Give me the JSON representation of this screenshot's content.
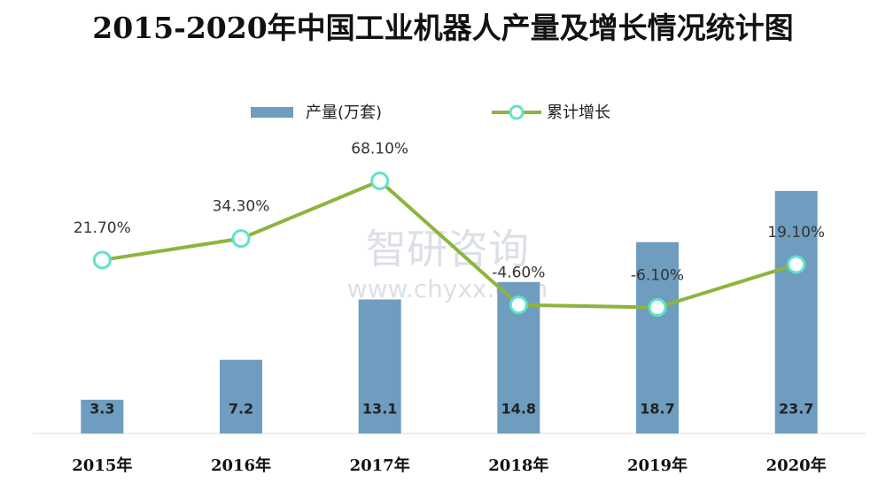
{
  "chart_data": {
    "type": "bar+line",
    "title": "2015-2020年中国工业机器人产量及增长情况统计图",
    "watermark": [
      "智研咨询",
      "www.chyxx.com"
    ],
    "categories": [
      "2015年",
      "2016年",
      "2017年",
      "2018年",
      "2019年",
      "2020年"
    ],
    "series": [
      {
        "name": "产量(万套)",
        "type": "bar",
        "color": "#6f9dc0",
        "values": [
          3.3,
          7.2,
          13.1,
          14.8,
          18.7,
          23.7
        ]
      },
      {
        "name": "累计增长",
        "type": "line",
        "axis": "y2",
        "color": "#8db43e",
        "marker_color": "#5fe3c9",
        "values": [
          21.7,
          34.3,
          68.1,
          -4.6,
          -6.1,
          19.1
        ],
        "value_labels": [
          "21.70%",
          "34.30%",
          "68.10%",
          "-4.60%",
          "-6.10%",
          "19.10%"
        ]
      }
    ],
    "ylim": [
      0,
      30
    ],
    "y2lim": [
      -80,
      100
    ],
    "grid": false,
    "legend": "top"
  }
}
